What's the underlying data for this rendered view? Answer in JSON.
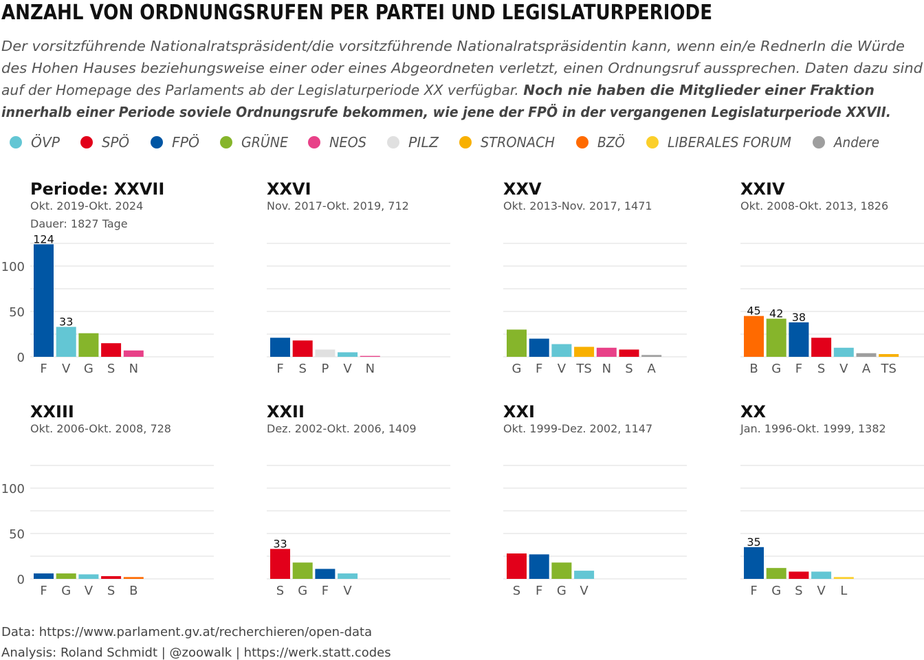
{
  "title": "ANZAHL VON ORDNUNGSRUFEN PER PARTEI UND LEGISLATURPERIODE",
  "subtitle": {
    "lines": [
      [
        {
          "text": "Der vorsitzführende Nationalratspräsident/die vorsitzführende Nationalratspräsidentin kann, wenn ein/e RednerIn die Würde",
          "bold": false
        }
      ],
      [
        {
          "text": "des Hohen Hauses beziehungsweise einer oder eines Abgeordneten verletzt, einen Ordnungsruf aussprechen. Daten dazu sind",
          "bold": false
        }
      ],
      [
        {
          "text": "auf der Homepage des Parlaments ab der Legislaturperiode XX verfügbar. ",
          "bold": false
        },
        {
          "text": "Noch nie haben die Mitglieder einer Fraktion",
          "bold": true
        }
      ],
      [
        {
          "text": "innerhalb einer Periode soviele Ordnungsrufe bekommen, wie jene der FPÖ in der vergangenen Legislaturperiode XXVII.",
          "bold": true
        }
      ]
    ]
  },
  "legend": [
    {
      "label": "ÖVP",
      "color": "#63c6d4"
    },
    {
      "label": "SPÖ",
      "color": "#e2001a"
    },
    {
      "label": "FPÖ",
      "color": "#0056a4"
    },
    {
      "label": "GRÜNE",
      "color": "#86b52b"
    },
    {
      "label": "NEOS",
      "color": "#e84188"
    },
    {
      "label": "PILZ",
      "color": "#e0e0e0"
    },
    {
      "label": "STRONACH",
      "color": "#f8b000"
    },
    {
      "label": "BZÖ",
      "color": "#ff6a00"
    },
    {
      "label": "LIBERALES FORUM",
      "color": "#fbcf2a"
    },
    {
      "label": "Andere",
      "color": "#9e9e9e"
    }
  ],
  "chart_data": {
    "type": "bar",
    "ylim": [
      0,
      125
    ],
    "yticks": [
      0,
      50,
      100
    ],
    "grid": true,
    "legend_position": "top",
    "facets": [
      {
        "title": "Periode: XXVII",
        "subtitle_lines": [
          "Okt. 2019-Okt. 2024",
          "Dauer: 1827 Tage"
        ],
        "bars": [
          {
            "cat": "F",
            "party": "FPÖ",
            "value": 124,
            "label": "124"
          },
          {
            "cat": "V",
            "party": "ÖVP",
            "value": 33,
            "label": "33"
          },
          {
            "cat": "G",
            "party": "GRÜNE",
            "value": 26,
            "label": ""
          },
          {
            "cat": "S",
            "party": "SPÖ",
            "value": 15,
            "label": ""
          },
          {
            "cat": "N",
            "party": "NEOS",
            "value": 7,
            "label": ""
          }
        ]
      },
      {
        "title": "XXVI",
        "subtitle_lines": [
          "Nov. 2017-Okt. 2019, 712"
        ],
        "bars": [
          {
            "cat": "F",
            "party": "FPÖ",
            "value": 21,
            "label": ""
          },
          {
            "cat": "S",
            "party": "SPÖ",
            "value": 18,
            "label": ""
          },
          {
            "cat": "P",
            "party": "PILZ",
            "value": 8,
            "label": ""
          },
          {
            "cat": "V",
            "party": "ÖVP",
            "value": 5,
            "label": ""
          },
          {
            "cat": "N",
            "party": "NEOS",
            "value": 1,
            "label": ""
          }
        ]
      },
      {
        "title": "XXV",
        "subtitle_lines": [
          "Okt. 2013-Nov. 2017, 1471"
        ],
        "bars": [
          {
            "cat": "G",
            "party": "GRÜNE",
            "value": 30,
            "label": ""
          },
          {
            "cat": "F",
            "party": "FPÖ",
            "value": 20,
            "label": ""
          },
          {
            "cat": "V",
            "party": "ÖVP",
            "value": 14,
            "label": ""
          },
          {
            "cat": "TS",
            "party": "STRONACH",
            "value": 11,
            "label": ""
          },
          {
            "cat": "N",
            "party": "NEOS",
            "value": 10,
            "label": ""
          },
          {
            "cat": "S",
            "party": "SPÖ",
            "value": 8,
            "label": ""
          },
          {
            "cat": "A",
            "party": "Andere",
            "value": 2,
            "label": ""
          }
        ]
      },
      {
        "title": "XXIV",
        "subtitle_lines": [
          "Okt. 2008-Okt. 2013, 1826"
        ],
        "bars": [
          {
            "cat": "B",
            "party": "BZÖ",
            "value": 45,
            "label": "45"
          },
          {
            "cat": "G",
            "party": "GRÜNE",
            "value": 42,
            "label": "42"
          },
          {
            "cat": "F",
            "party": "FPÖ",
            "value": 38,
            "label": "38"
          },
          {
            "cat": "S",
            "party": "SPÖ",
            "value": 21,
            "label": ""
          },
          {
            "cat": "V",
            "party": "ÖVP",
            "value": 10,
            "label": ""
          },
          {
            "cat": "A",
            "party": "Andere",
            "value": 4,
            "label": ""
          },
          {
            "cat": "TS",
            "party": "STRONACH",
            "value": 3,
            "label": ""
          }
        ]
      },
      {
        "title": "XXIII",
        "subtitle_lines": [
          "Okt. 2006-Okt. 2008, 728"
        ],
        "bars": [
          {
            "cat": "F",
            "party": "FPÖ",
            "value": 6,
            "label": ""
          },
          {
            "cat": "G",
            "party": "GRÜNE",
            "value": 6,
            "label": ""
          },
          {
            "cat": "V",
            "party": "ÖVP",
            "value": 5,
            "label": ""
          },
          {
            "cat": "S",
            "party": "SPÖ",
            "value": 3,
            "label": ""
          },
          {
            "cat": "B",
            "party": "BZÖ",
            "value": 2,
            "label": ""
          }
        ]
      },
      {
        "title": "XXII",
        "subtitle_lines": [
          "Dez. 2002-Okt. 2006, 1409"
        ],
        "bars": [
          {
            "cat": "S",
            "party": "SPÖ",
            "value": 33,
            "label": "33"
          },
          {
            "cat": "G",
            "party": "GRÜNE",
            "value": 18,
            "label": ""
          },
          {
            "cat": "F",
            "party": "FPÖ",
            "value": 11,
            "label": ""
          },
          {
            "cat": "V",
            "party": "ÖVP",
            "value": 6,
            "label": ""
          }
        ]
      },
      {
        "title": "XXI",
        "subtitle_lines": [
          "Okt. 1999-Dez. 2002, 1147"
        ],
        "bars": [
          {
            "cat": "S",
            "party": "SPÖ",
            "value": 28,
            "label": ""
          },
          {
            "cat": "F",
            "party": "FPÖ",
            "value": 27,
            "label": ""
          },
          {
            "cat": "G",
            "party": "GRÜNE",
            "value": 18,
            "label": ""
          },
          {
            "cat": "V",
            "party": "ÖVP",
            "value": 9,
            "label": ""
          }
        ]
      },
      {
        "title": "XX",
        "subtitle_lines": [
          "Jan. 1996-Okt. 1999, 1382"
        ],
        "bars": [
          {
            "cat": "F",
            "party": "FPÖ",
            "value": 35,
            "label": "35"
          },
          {
            "cat": "G",
            "party": "GRÜNE",
            "value": 12,
            "label": ""
          },
          {
            "cat": "S",
            "party": "SPÖ",
            "value": 8,
            "label": ""
          },
          {
            "cat": "V",
            "party": "ÖVP",
            "value": 8,
            "label": ""
          },
          {
            "cat": "L",
            "party": "LIBERALES FORUM",
            "value": 2,
            "label": ""
          }
        ]
      }
    ]
  },
  "caption": [
    "Data: https://www.parlament.gv.at/recherchieren/open-data",
    "Analysis: Roland Schmidt | @zoowalk | https://werk.statt.codes"
  ]
}
